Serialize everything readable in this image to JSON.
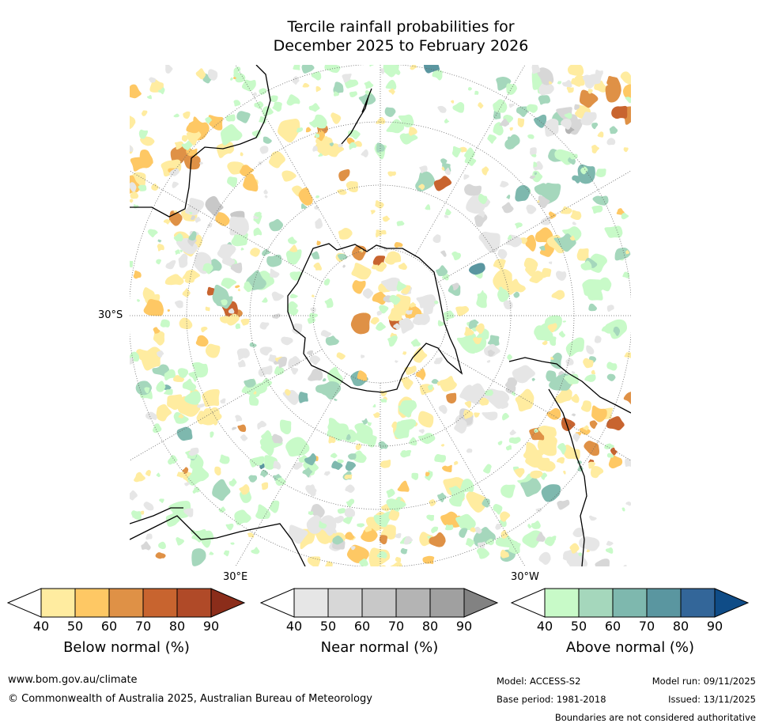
{
  "title": {
    "line1": "Tercile rainfall probabilities for",
    "line2": "December 2025 to February 2026"
  },
  "map": {
    "projection": "south-polar-stereographic",
    "lat_label": "30°S",
    "lon_label_east": "30°E",
    "lon_label_west": "30°W",
    "colors": {
      "below": [
        "#ffeca0",
        "#fec864",
        "#df9146",
        "#c8642f",
        "#b04a28",
        "#8b2d1a"
      ],
      "near": [
        "#e6e6e6",
        "#d7d7d7",
        "#c8c8c8",
        "#b4b4b4",
        "#a0a0a0",
        "#828282"
      ],
      "above": [
        "#c8fac8",
        "#a5d7bc",
        "#7eb8ae",
        "#5a96a0",
        "#336699",
        "#0f4c87"
      ]
    }
  },
  "colorbars": [
    {
      "name": "below",
      "title": "Below normal (%)",
      "ticks": [
        "40",
        "50",
        "60",
        "70",
        "80",
        "90"
      ],
      "colors": [
        "#ffeca0",
        "#fec864",
        "#df9146",
        "#c8642f",
        "#b04a28",
        "#8b2d1a"
      ]
    },
    {
      "name": "near",
      "title": "Near normal (%)",
      "ticks": [
        "40",
        "50",
        "60",
        "70",
        "80",
        "90"
      ],
      "colors": [
        "#e6e6e6",
        "#d7d7d7",
        "#c8c8c8",
        "#b4b4b4",
        "#a0a0a0",
        "#828282"
      ]
    },
    {
      "name": "above",
      "title": "Above normal (%)",
      "ticks": [
        "40",
        "50",
        "60",
        "70",
        "80",
        "90"
      ],
      "colors": [
        "#c8fac8",
        "#a5d7bc",
        "#7eb8ae",
        "#5a96a0",
        "#336699",
        "#0f4c87"
      ]
    }
  ],
  "footer": {
    "website": "www.bom.gov.au/climate",
    "copyright": "© Commonwealth of Australia 2025, Australian Bureau of Meteorology",
    "model": "Model: ACCESS-S2",
    "base_period": "Base period: 1981-2018",
    "model_run": "Model run: 09/11/2025",
    "issued": "Issued: 13/11/2025",
    "disclaimer": "Boundaries are not considered authoritative"
  }
}
